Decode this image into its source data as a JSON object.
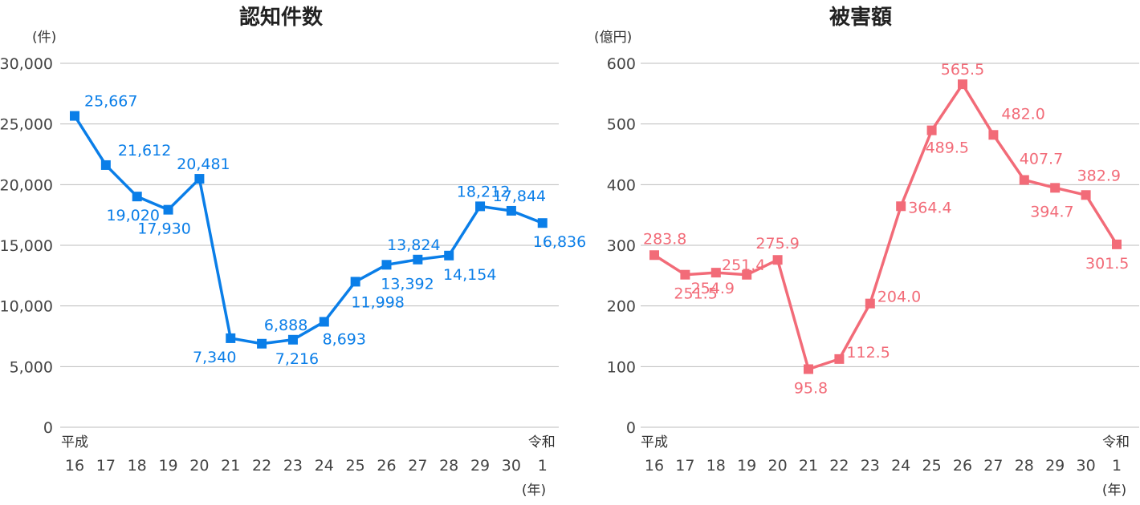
{
  "chart_data": [
    {
      "type": "line",
      "title": "認知件数",
      "yunit": "(件)",
      "xunit": "(年)",
      "categories": [
        "16",
        "17",
        "18",
        "19",
        "20",
        "21",
        "22",
        "23",
        "24",
        "25",
        "26",
        "27",
        "28",
        "29",
        "30",
        "1"
      ],
      "era_labels": [
        {
          "index": 0,
          "text": "平成"
        },
        {
          "index": 15,
          "text": "令和"
        }
      ],
      "ylim": [
        0,
        30000
      ],
      "yticks": [
        0,
        5000,
        10000,
        15000,
        20000,
        25000,
        30000
      ],
      "ytick_labels": [
        "0",
        "5,000",
        "10,000",
        "15,000",
        "20,000",
        "25,000",
        "30,000"
      ],
      "grid": true,
      "color": "#0a7ee8",
      "series": [
        {
          "values": [
            25667,
            21612,
            19020,
            17930,
            20481,
            7340,
            6888,
            7216,
            8693,
            11998,
            13392,
            13824,
            14154,
            18212,
            17844,
            16836
          ],
          "labels": [
            "25,667",
            "21,612",
            "19,020",
            "17,930",
            "20,481",
            "7,340",
            "6,888",
            "7,216",
            "8,693",
            "11,998",
            "13,392",
            "13,824",
            "14,154",
            "18,212",
            "17,844",
            "16,836"
          ]
        }
      ]
    },
    {
      "type": "line",
      "title": "被害額",
      "yunit": "(億円)",
      "xunit": "(年)",
      "categories": [
        "16",
        "17",
        "18",
        "19",
        "20",
        "21",
        "22",
        "23",
        "24",
        "25",
        "26",
        "27",
        "28",
        "29",
        "30",
        "1"
      ],
      "era_labels": [
        {
          "index": 0,
          "text": "平成"
        },
        {
          "index": 15,
          "text": "令和"
        }
      ],
      "ylim": [
        0,
        600
      ],
      "yticks": [
        0,
        100,
        200,
        300,
        400,
        500,
        600
      ],
      "ytick_labels": [
        "0",
        "100",
        "200",
        "300",
        "400",
        "500",
        "600"
      ],
      "grid": true,
      "color": "#f26b78",
      "series": [
        {
          "values": [
            283.8,
            251.5,
            254.9,
            251.4,
            275.9,
            95.8,
            112.5,
            204.0,
            364.4,
            489.5,
            565.5,
            482.0,
            407.7,
            394.7,
            382.9,
            301.5
          ],
          "labels": [
            "283.8",
            "251.5",
            "254.9",
            "251.4",
            "275.9",
            "95.8",
            "112.5",
            "204.0",
            "364.4",
            "489.5",
            "565.5",
            "482.0",
            "407.7",
            "394.7",
            "382.9",
            "301.5"
          ]
        }
      ]
    }
  ]
}
